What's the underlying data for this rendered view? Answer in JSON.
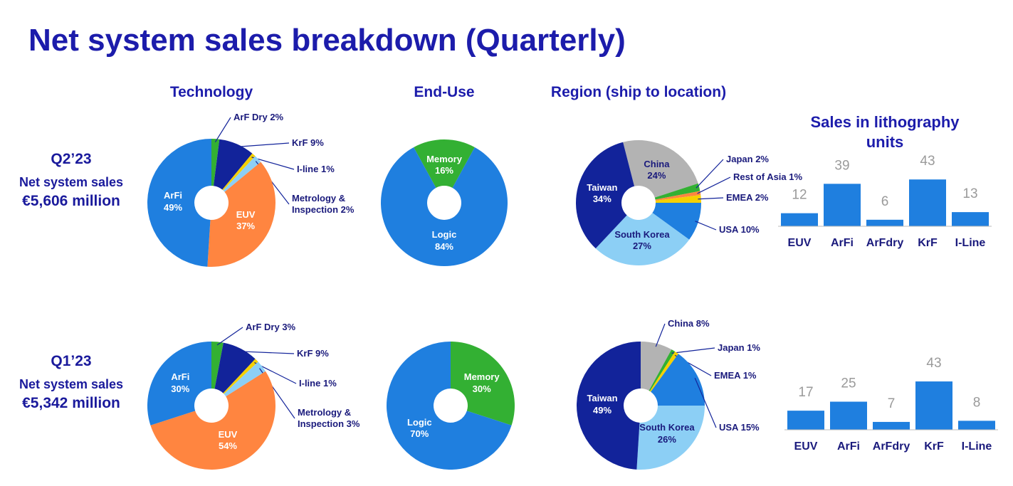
{
  "title": "Net system sales breakdown (Quarterly)",
  "rows": [
    {
      "period": "Q2’23",
      "label": "Net system sales",
      "amount": "€5,606 million"
    },
    {
      "period": "Q1’23",
      "label": "Net system sales",
      "amount": "€5,342 million"
    }
  ],
  "chart_data": [
    {
      "type": "pie",
      "title": "Technology",
      "categories": [
        "ArF Dry",
        "KrF",
        "I-line",
        "Metrology & Inspection",
        "EUV",
        "ArFi"
      ],
      "values": [
        2,
        9,
        1,
        2,
        37,
        49
      ],
      "value_labels": [
        "2%",
        "9%",
        "1%",
        "2%",
        "37%",
        "49%"
      ],
      "colors": [
        "#33b033",
        "#12239a",
        "#f5d000",
        "#8ccff5",
        "#ff8540",
        "#1f7fdf"
      ]
    },
    {
      "type": "pie",
      "title": "End-Use",
      "categories": [
        "Memory",
        "Logic"
      ],
      "values": [
        16,
        84
      ],
      "value_labels": [
        "16%",
        "84%"
      ],
      "colors": [
        "#33b033",
        "#1f7fdf"
      ]
    },
    {
      "type": "pie",
      "title": "Region (ship to location)",
      "categories": [
        "China",
        "Japan",
        "Rest of Asia",
        "EMEA",
        "USA",
        "South Korea",
        "Taiwan"
      ],
      "values": [
        24,
        2,
        1,
        2,
        10,
        27,
        34
      ],
      "value_labels": [
        "24%",
        "2%",
        "1%",
        "2%",
        "10%",
        "27%",
        "34%"
      ],
      "colors": [
        "#b3b3b3",
        "#33b033",
        "#ff8540",
        "#f5d000",
        "#1f7fdf",
        "#8ccff5",
        "#12239a"
      ]
    },
    {
      "type": "bar",
      "title": "Sales in lithography units",
      "categories": [
        "EUV",
        "ArFi",
        "ArFdry",
        "KrF",
        "I-Line"
      ],
      "values": [
        12,
        39,
        6,
        43,
        13
      ],
      "color": "#1f7fdf"
    },
    {
      "type": "pie",
      "categories": [
        "ArF Dry",
        "KrF",
        "I-line",
        "Metrology & Inspection",
        "EUV",
        "ArFi"
      ],
      "values": [
        3,
        9,
        1,
        3,
        54,
        30
      ],
      "value_labels": [
        "3%",
        "9%",
        "1%",
        "3%",
        "54%",
        "30%"
      ],
      "colors": [
        "#33b033",
        "#12239a",
        "#f5d000",
        "#8ccff5",
        "#ff8540",
        "#1f7fdf"
      ]
    },
    {
      "type": "pie",
      "categories": [
        "Memory",
        "Logic"
      ],
      "values": [
        30,
        70
      ],
      "value_labels": [
        "30%",
        "70%"
      ],
      "colors": [
        "#33b033",
        "#1f7fdf"
      ]
    },
    {
      "type": "pie",
      "categories": [
        "China",
        "Japan",
        "EMEA",
        "USA",
        "South Korea",
        "Taiwan"
      ],
      "values": [
        8,
        1,
        1,
        15,
        26,
        49
      ],
      "value_labels": [
        "8%",
        "1%",
        "1%",
        "15%",
        "26%",
        "49%"
      ],
      "colors": [
        "#b3b3b3",
        "#33b033",
        "#f5d000",
        "#1f7fdf",
        "#8ccff5",
        "#12239a"
      ]
    },
    {
      "type": "bar",
      "categories": [
        "EUV",
        "ArFi",
        "ArFdry",
        "KrF",
        "I-Line"
      ],
      "values": [
        17,
        25,
        7,
        43,
        8
      ],
      "color": "#1f7fdf"
    }
  ]
}
